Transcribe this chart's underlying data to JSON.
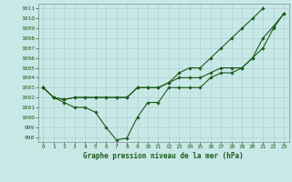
{
  "title": "Graphe pression niveau de la mer (hPa)",
  "xlabel_ticks": [
    0,
    1,
    2,
    3,
    4,
    5,
    6,
    7,
    8,
    9,
    10,
    11,
    12,
    13,
    14,
    15,
    16,
    17,
    18,
    19,
    20,
    21,
    22,
    23
  ],
  "ylim": [
    997.5,
    1011.5
  ],
  "yticks": [
    998,
    999,
    1000,
    1001,
    1002,
    1003,
    1004,
    1005,
    1006,
    1007,
    1008,
    1009,
    1010,
    1011
  ],
  "line1": [
    1003,
    1002,
    1001.5,
    1001,
    1001,
    1000.5,
    999.0,
    997.7,
    997.9,
    1000,
    1001.5,
    1001.5,
    1003,
    1003,
    1003,
    1003,
    1004,
    1004.5,
    1004.5,
    1005,
    1006,
    1008,
    1009.2,
    1010.5
  ],
  "line2": [
    1003,
    1002,
    1001.8,
    1002,
    1002,
    1002,
    1002,
    1002,
    1002,
    1003,
    1003,
    1003,
    1003.5,
    1004,
    1004,
    1004,
    1004.5,
    1005,
    1005,
    1005,
    1006,
    1007,
    1009,
    1010.5
  ],
  "line3": [
    1003,
    1002,
    1001.8,
    1002,
    1002,
    1002,
    1002,
    1002,
    1002,
    1003,
    1003,
    1003,
    1003.5,
    1004.5,
    1005,
    1005,
    1006,
    1007,
    1008,
    1009,
    1010,
    1011,
    null,
    null
  ],
  "line_color": "#1a5c1a",
  "bg_color": "#c8e8e8",
  "grid_color": "#b0c8c8",
  "title_color": "#1a5c1a",
  "tick_label_color": "#1a5c1a"
}
